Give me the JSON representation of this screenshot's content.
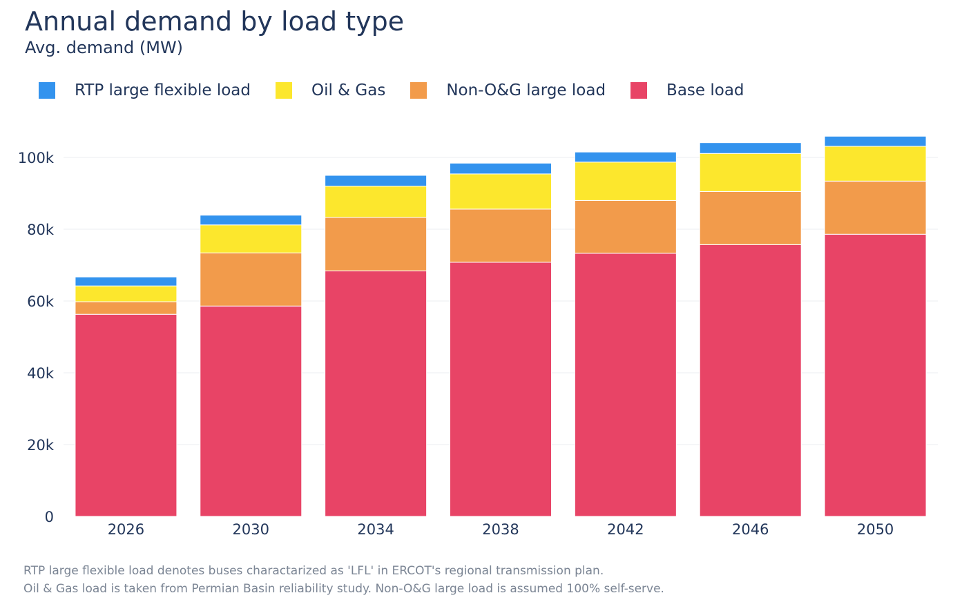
{
  "title": "Annual demand by load type",
  "subtitle": "Avg. demand (MW)",
  "notes": [
    "RTP large flexible load denotes buses charactarized as 'LFL' in ERCOT's regional transmission plan.",
    "Oil & Gas load is taken from Permian Basin reliability study. Non-O&G large load is assumed 100% self-serve."
  ],
  "chart_data": {
    "type": "bar",
    "stacked": true,
    "title": "Annual demand by load type",
    "subtitle": "Avg. demand (MW)",
    "xlabel": "",
    "ylabel": "",
    "categories": [
      "2026",
      "2030",
      "2034",
      "2038",
      "2042",
      "2046",
      "2050"
    ],
    "ylim": [
      0,
      110000
    ],
    "yticks": [
      0,
      20000,
      40000,
      60000,
      80000,
      100000
    ],
    "ytick_labels": [
      "0",
      "20k",
      "40k",
      "60k",
      "80k",
      "100k"
    ],
    "grid": true,
    "legend_position": "top-left",
    "series": [
      {
        "name": "Base load",
        "color": "#e84466",
        "values": [
          56300,
          58600,
          68400,
          70800,
          73300,
          75700,
          78600
        ]
      },
      {
        "name": "Non-O&G large load",
        "color": "#f29b4b",
        "values": [
          3500,
          14800,
          14900,
          14800,
          14700,
          14800,
          14800
        ]
      },
      {
        "name": "Oil & Gas",
        "color": "#fce72d",
        "values": [
          4400,
          7800,
          8700,
          9800,
          10700,
          10600,
          9700
        ]
      },
      {
        "name": "RTP large flexible load",
        "color": "#3393ee",
        "values": [
          2500,
          2700,
          3000,
          3000,
          2800,
          3000,
          2800
        ]
      }
    ],
    "legend_order": [
      "RTP large flexible load",
      "Oil & Gas",
      "Non-O&G large load",
      "Base load"
    ]
  }
}
